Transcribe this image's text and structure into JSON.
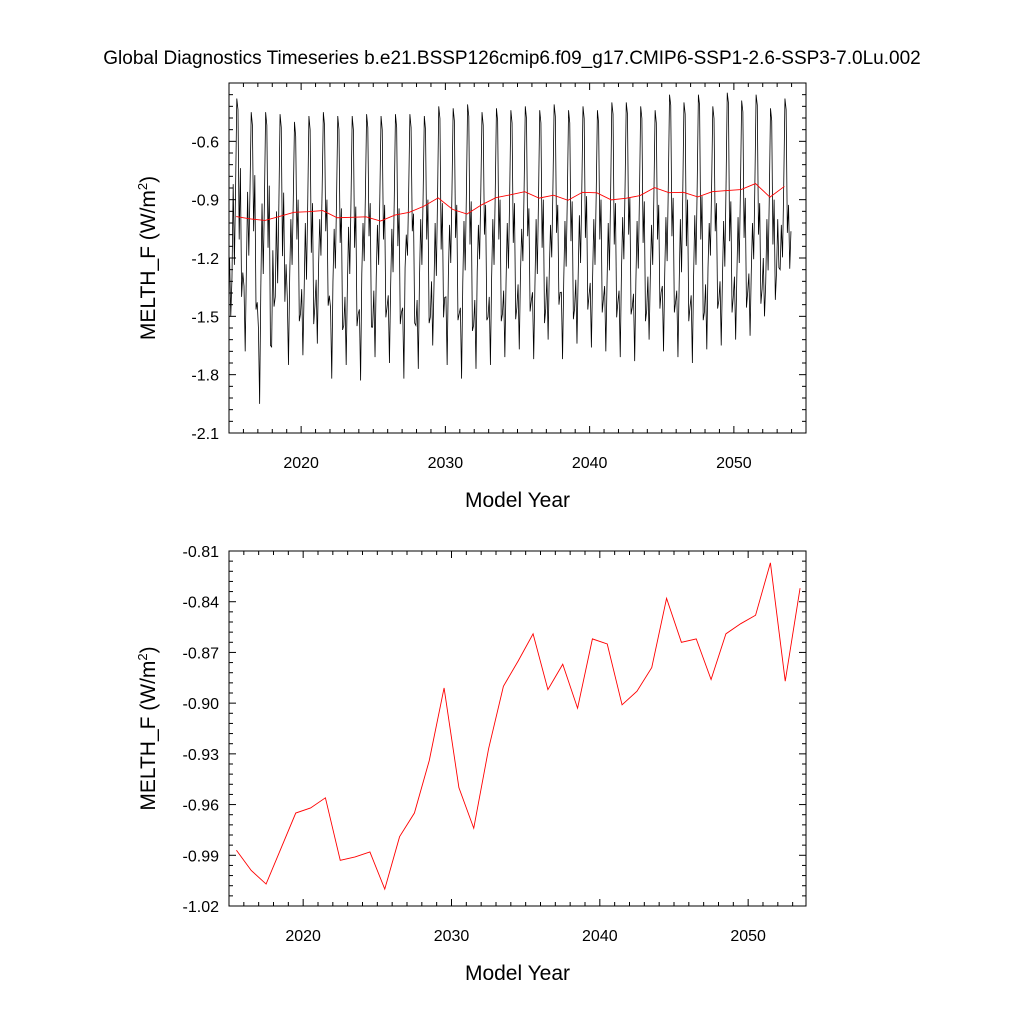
{
  "title": "Global Diagnostics Timeseries b.e21.BSSP126cmip6.f09_g17.CMIP6-SSP1-2.6-SSP3-7.0Lu.002",
  "colors": {
    "monthly": "#000000",
    "annual": "#ff0000",
    "axis": "#000000"
  },
  "chart_data": [
    {
      "type": "line",
      "xlabel": "Model Year",
      "ylabel_main": "MELTH_F (W/m",
      "ylabel_sup": "2",
      "ylabel_end": ")",
      "xlim": [
        2015,
        2055
      ],
      "ylim": [
        -2.1,
        -0.3
      ],
      "xticks": [
        2020,
        2030,
        2040,
        2050
      ],
      "xtick_labels": [
        "2020",
        "2030",
        "2040",
        "2050"
      ],
      "yticks": [
        -2.1,
        -1.8,
        -1.5,
        -1.2,
        -0.9,
        -0.6
      ],
      "ytick_labels": [
        "-2.1",
        "-1.8",
        "-1.5",
        "-1.2",
        "-0.9",
        "-0.6"
      ],
      "series": [
        {
          "style": "monthly",
          "x_start": 2015.04,
          "x_step": 0.0833333,
          "summer_peak": [
            -0.38,
            -0.45,
            -0.45,
            -0.46,
            -0.5,
            -0.47,
            -0.45,
            -0.47,
            -0.47,
            -0.46,
            -0.47,
            -0.46,
            -0.46,
            -0.47,
            -0.42,
            -0.43,
            -0.41,
            -0.45,
            -0.43,
            -0.44,
            -0.42,
            -0.44,
            -0.41,
            -0.44,
            -0.42,
            -0.44,
            -0.4,
            -0.4,
            -0.42,
            -0.44,
            -0.36,
            -0.4,
            -0.36,
            -0.42,
            -0.35,
            -0.39,
            -0.36,
            -0.43,
            -0.38
          ],
          "winter_trough": [
            -1.5,
            -1.68,
            -1.95,
            -1.45,
            -1.75,
            -1.7,
            -1.64,
            -1.82,
            -1.75,
            -1.83,
            -1.71,
            -1.74,
            -1.82,
            -1.77,
            -1.65,
            -1.75,
            -1.82,
            -1.77,
            -1.75,
            -1.71,
            -1.67,
            -1.72,
            -1.62,
            -1.72,
            -1.64,
            -1.66,
            -1.68,
            -1.71,
            -1.73,
            -1.62,
            -1.68,
            -1.71,
            -1.74,
            -1.67,
            -1.65,
            -1.62,
            -1.6,
            -1.5,
            -1.25
          ],
          "secondary_peak": [
            -0.82,
            -0.86,
            -0.92,
            -0.96,
            -1.0,
            -1.02,
            -1.0,
            -1.05,
            -1.04,
            -1.02,
            -1.03,
            -1.05,
            -1.08,
            -1.0,
            -1.02,
            -1.03,
            -1.01,
            -1.03,
            -1.0,
            -1.02,
            -1.05,
            -1.0,
            -1.03,
            -1.01,
            -0.98,
            -1.0,
            -1.02,
            -0.99,
            -1.01,
            -1.03,
            -0.99,
            -1.0,
            -0.98,
            -1.02,
            -1.01,
            -0.99,
            -1.02,
            -1.0,
            -1.03
          ],
          "secondary_trough": [
            -1.3,
            -1.25,
            -1.35,
            -1.4,
            -1.3,
            -1.38,
            -1.25,
            -1.32,
            -1.35,
            -1.28,
            -1.3,
            -1.34,
            -1.25,
            -1.3,
            -1.36,
            -1.29,
            -1.33,
            -1.27,
            -1.3,
            -1.32,
            -1.28,
            -1.35,
            -1.26,
            -1.31,
            -1.29,
            -1.3,
            -1.33,
            -1.27,
            -1.32,
            -1.3,
            -1.28,
            -1.34,
            -1.3,
            -1.25,
            -1.31,
            -1.29,
            -1.27,
            -1.33,
            -1.26
          ]
        },
        {
          "style": "annual",
          "x": [
            2015.5,
            2016.5,
            2017.5,
            2018.5,
            2019.5,
            2020.5,
            2021.5,
            2022.5,
            2023.5,
            2024.5,
            2025.5,
            2026.5,
            2027.5,
            2028.5,
            2029.5,
            2030.5,
            2031.5,
            2032.5,
            2033.5,
            2034.5,
            2035.5,
            2036.5,
            2037.5,
            2038.5,
            2039.5,
            2040.5,
            2041.5,
            2042.5,
            2043.5,
            2044.5,
            2045.5,
            2046.5,
            2047.5,
            2048.5,
            2049.5,
            2050.5,
            2051.5,
            2052.5,
            2053.5
          ],
          "values": [
            -0.987,
            -0.999,
            -1.007,
            -0.986,
            -0.965,
            -0.962,
            -0.956,
            -0.993,
            -0.991,
            -0.988,
            -1.01,
            -0.979,
            -0.965,
            -0.934,
            -0.891,
            -0.95,
            -0.974,
            -0.927,
            -0.89,
            -0.875,
            -0.859,
            -0.892,
            -0.877,
            -0.903,
            -0.862,
            -0.865,
            -0.901,
            -0.893,
            -0.879,
            -0.838,
            -0.864,
            -0.862,
            -0.886,
            -0.859,
            -0.853,
            -0.848,
            -0.817,
            -0.887,
            -0.832
          ]
        }
      ]
    },
    {
      "type": "line",
      "xlabel": "Model Year",
      "ylabel_main": "MELTH_F (W/m",
      "ylabel_sup": "2",
      "ylabel_end": ")",
      "xlim": [
        2015,
        2053.9
      ],
      "ylim": [
        -1.02,
        -0.81
      ],
      "xticks": [
        2020,
        2030,
        2040,
        2050
      ],
      "xtick_labels": [
        "2020",
        "2030",
        "2040",
        "2050"
      ],
      "yticks": [
        -1.02,
        -0.99,
        -0.96,
        -0.93,
        -0.9,
        -0.87,
        -0.84,
        -0.81
      ],
      "ytick_labels": [
        "-1.02",
        "-0.99",
        "-0.96",
        "-0.93",
        "-0.90",
        "-0.87",
        "-0.84",
        "-0.81"
      ],
      "series": [
        {
          "style": "annual",
          "x": [
            2015.5,
            2016.5,
            2017.5,
            2018.5,
            2019.5,
            2020.5,
            2021.5,
            2022.5,
            2023.5,
            2024.5,
            2025.5,
            2026.5,
            2027.5,
            2028.5,
            2029.5,
            2030.5,
            2031.5,
            2032.5,
            2033.5,
            2034.5,
            2035.5,
            2036.5,
            2037.5,
            2038.5,
            2039.5,
            2040.5,
            2041.5,
            2042.5,
            2043.5,
            2044.5,
            2045.5,
            2046.5,
            2047.5,
            2048.5,
            2049.5,
            2050.5,
            2051.5,
            2052.5,
            2053.5
          ],
          "values": [
            -0.987,
            -0.999,
            -1.007,
            -0.986,
            -0.965,
            -0.962,
            -0.956,
            -0.993,
            -0.991,
            -0.988,
            -1.01,
            -0.979,
            -0.965,
            -0.934,
            -0.891,
            -0.95,
            -0.974,
            -0.927,
            -0.89,
            -0.875,
            -0.859,
            -0.892,
            -0.877,
            -0.903,
            -0.862,
            -0.865,
            -0.901,
            -0.893,
            -0.879,
            -0.838,
            -0.864,
            -0.862,
            -0.886,
            -0.859,
            -0.853,
            -0.848,
            -0.817,
            -0.887,
            -0.832
          ]
        }
      ]
    }
  ]
}
